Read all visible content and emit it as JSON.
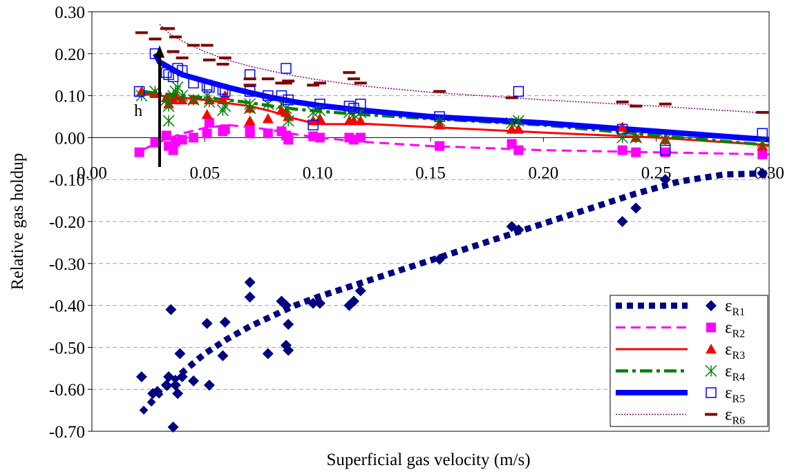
{
  "chart_data": {
    "type": "scatter",
    "xlabel": "Superficial gas velocity (m/s)",
    "ylabel": "Relative gas holdup",
    "xlim": [
      0,
      0.3
    ],
    "ylim": [
      -0.7,
      0.3
    ],
    "xticks": [
      0.0,
      0.05,
      0.1,
      0.15,
      0.2,
      0.25,
      0.3
    ],
    "xtick_labels": [
      "0.00",
      "0.05",
      "0.10",
      "0.15",
      "0.20",
      "0.25",
      "0.30"
    ],
    "yticks": [
      0.3,
      0.2,
      0.1,
      0.0,
      -0.1,
      -0.2,
      -0.3,
      -0.4,
      -0.5,
      -0.6,
      -0.7
    ],
    "ytick_labels": [
      "0.30",
      "0.20",
      "0.10",
      "0.00",
      "-0.10",
      "-0.20",
      "-0.30",
      "-0.40",
      "-0.50",
      "-0.60",
      "-0.70"
    ],
    "grid": "horizontal-dashed",
    "legend_position": "bottom-right",
    "annotation": {
      "text": "h",
      "arrow_x": 0.03,
      "arrow_from": -0.07,
      "arrow_to": 0.22,
      "text_x": 0.023,
      "text_y": 0.065
    },
    "series": [
      {
        "name": "ε",
        "sub": "R1",
        "marker": "diamond",
        "marker_color": "#000080",
        "line_style": "dotted-thick",
        "line_color": "#000080",
        "points": [
          [
            0.022,
            -0.57
          ],
          [
            0.027,
            -0.61
          ],
          [
            0.029,
            -0.605
          ],
          [
            0.033,
            -0.59
          ],
          [
            0.034,
            -0.57
          ],
          [
            0.035,
            -0.41
          ],
          [
            0.036,
            -0.69
          ],
          [
            0.037,
            -0.59
          ],
          [
            0.038,
            -0.61
          ],
          [
            0.039,
            -0.515
          ],
          [
            0.04,
            -0.57
          ],
          [
            0.045,
            -0.58
          ],
          [
            0.051,
            -0.443
          ],
          [
            0.052,
            -0.59
          ],
          [
            0.058,
            -0.52
          ],
          [
            0.059,
            -0.44
          ],
          [
            0.07,
            -0.345
          ],
          [
            0.07,
            -0.38
          ],
          [
            0.078,
            -0.515
          ],
          [
            0.084,
            -0.39
          ],
          [
            0.086,
            -0.495
          ],
          [
            0.086,
            -0.4
          ],
          [
            0.087,
            -0.445
          ],
          [
            0.087,
            -0.507
          ],
          [
            0.098,
            -0.395
          ],
          [
            0.101,
            -0.395
          ],
          [
            0.114,
            -0.4
          ],
          [
            0.116,
            -0.39
          ],
          [
            0.119,
            -0.365
          ],
          [
            0.154,
            -0.29
          ],
          [
            0.186,
            -0.212
          ],
          [
            0.189,
            -0.22
          ],
          [
            0.235,
            -0.2
          ],
          [
            0.241,
            -0.168
          ],
          [
            0.254,
            -0.1
          ],
          [
            0.297,
            -0.085
          ]
        ],
        "fit": [
          [
            0.022,
            -0.655
          ],
          [
            0.03,
            -0.61
          ],
          [
            0.04,
            -0.56
          ],
          [
            0.05,
            -0.515
          ],
          [
            0.06,
            -0.48
          ],
          [
            0.07,
            -0.45
          ],
          [
            0.08,
            -0.425
          ],
          [
            0.09,
            -0.4
          ],
          [
            0.1,
            -0.38
          ],
          [
            0.12,
            -0.345
          ],
          [
            0.14,
            -0.31
          ],
          [
            0.16,
            -0.275
          ],
          [
            0.18,
            -0.24
          ],
          [
            0.2,
            -0.205
          ],
          [
            0.22,
            -0.17
          ],
          [
            0.24,
            -0.135
          ],
          [
            0.26,
            -0.105
          ],
          [
            0.28,
            -0.088
          ],
          [
            0.3,
            -0.085
          ]
        ]
      },
      {
        "name": "ε",
        "sub": "R2",
        "marker": "square-filled",
        "marker_color": "#ff00ff",
        "line_style": "dashed",
        "line_color": "#ff00ff",
        "points": [
          [
            0.021,
            -0.035
          ],
          [
            0.028,
            -0.012
          ],
          [
            0.033,
            0.005
          ],
          [
            0.034,
            -0.02
          ],
          [
            0.036,
            -0.03
          ],
          [
            0.037,
            -0.01
          ],
          [
            0.04,
            -0.005
          ],
          [
            0.045,
            0.0
          ],
          [
            0.051,
            0.01
          ],
          [
            0.052,
            0.035
          ],
          [
            0.058,
            0.015
          ],
          [
            0.059,
            0.02
          ],
          [
            0.07,
            0.02
          ],
          [
            0.07,
            0.01
          ],
          [
            0.078,
            0.01
          ],
          [
            0.084,
            0.015
          ],
          [
            0.086,
            0.005
          ],
          [
            0.087,
            -0.005
          ],
          [
            0.098,
            0.003
          ],
          [
            0.101,
            0.0
          ],
          [
            0.114,
            0.0
          ],
          [
            0.116,
            -0.005
          ],
          [
            0.119,
            0.0
          ],
          [
            0.154,
            -0.02
          ],
          [
            0.186,
            -0.015
          ],
          [
            0.189,
            -0.03
          ],
          [
            0.235,
            -0.03
          ],
          [
            0.241,
            -0.035
          ],
          [
            0.254,
            -0.035
          ],
          [
            0.297,
            -0.04
          ]
        ],
        "fit": [
          [
            0.022,
            -0.03
          ],
          [
            0.03,
            -0.01
          ],
          [
            0.04,
            0.01
          ],
          [
            0.05,
            0.023
          ],
          [
            0.06,
            0.03
          ],
          [
            0.07,
            0.025
          ],
          [
            0.08,
            0.018
          ],
          [
            0.09,
            0.008
          ],
          [
            0.1,
            0.0
          ],
          [
            0.12,
            -0.01
          ],
          [
            0.15,
            -0.02
          ],
          [
            0.2,
            -0.03
          ],
          [
            0.25,
            -0.035
          ],
          [
            0.3,
            -0.04
          ]
        ]
      },
      {
        "name": "ε",
        "sub": "R3",
        "marker": "triangle",
        "marker_color": "#ff0000",
        "line_style": "solid",
        "line_color": "#ff0000",
        "points": [
          [
            0.022,
            0.11
          ],
          [
            0.028,
            0.105
          ],
          [
            0.033,
            0.095
          ],
          [
            0.034,
            0.08
          ],
          [
            0.036,
            0.09
          ],
          [
            0.037,
            0.1
          ],
          [
            0.04,
            0.09
          ],
          [
            0.045,
            0.09
          ],
          [
            0.051,
            0.055
          ],
          [
            0.052,
            0.09
          ],
          [
            0.058,
            0.09
          ],
          [
            0.059,
            0.1
          ],
          [
            0.07,
            0.04
          ],
          [
            0.07,
            0.07
          ],
          [
            0.078,
            0.045
          ],
          [
            0.084,
            0.065
          ],
          [
            0.086,
            0.06
          ],
          [
            0.087,
            0.05
          ],
          [
            0.098,
            0.04
          ],
          [
            0.101,
            0.045
          ],
          [
            0.114,
            0.04
          ],
          [
            0.116,
            0.04
          ],
          [
            0.119,
            0.04
          ],
          [
            0.154,
            0.03
          ],
          [
            0.186,
            0.02
          ],
          [
            0.189,
            0.02
          ],
          [
            0.235,
            0.025
          ],
          [
            0.241,
            0.0
          ],
          [
            0.254,
            -0.005
          ],
          [
            0.297,
            -0.02
          ]
        ],
        "fit": [
          [
            0.022,
            0.105
          ],
          [
            0.03,
            0.1
          ],
          [
            0.04,
            0.095
          ],
          [
            0.05,
            0.09
          ],
          [
            0.06,
            0.082
          ],
          [
            0.07,
            0.075
          ],
          [
            0.08,
            0.062
          ],
          [
            0.09,
            0.045
          ],
          [
            0.1,
            0.032
          ],
          [
            0.11,
            0.032
          ],
          [
            0.12,
            0.033
          ],
          [
            0.15,
            0.025
          ],
          [
            0.2,
            0.012
          ],
          [
            0.25,
            0.0
          ],
          [
            0.3,
            -0.018
          ]
        ]
      },
      {
        "name": "ε",
        "sub": "R4",
        "marker": "asterisk",
        "marker_color": "#008000",
        "line_style": "dashdot",
        "line_color": "#008000",
        "points": [
          [
            0.022,
            0.1
          ],
          [
            0.028,
            0.11
          ],
          [
            0.033,
            0.09
          ],
          [
            0.034,
            0.075
          ],
          [
            0.036,
            0.1
          ],
          [
            0.037,
            0.11
          ],
          [
            0.038,
            0.12
          ],
          [
            0.04,
            0.1
          ],
          [
            0.045,
            0.09
          ],
          [
            0.051,
            0.1
          ],
          [
            0.052,
            0.085
          ],
          [
            0.058,
            0.065
          ],
          [
            0.059,
            0.075
          ],
          [
            0.07,
            0.08
          ],
          [
            0.07,
            0.07
          ],
          [
            0.078,
            0.08
          ],
          [
            0.084,
            0.08
          ],
          [
            0.086,
            0.07
          ],
          [
            0.087,
            0.04
          ],
          [
            0.098,
            0.06
          ],
          [
            0.101,
            0.065
          ],
          [
            0.114,
            0.06
          ],
          [
            0.116,
            0.055
          ],
          [
            0.119,
            0.06
          ],
          [
            0.154,
            0.04
          ],
          [
            0.186,
            0.035
          ],
          [
            0.189,
            0.04
          ],
          [
            0.235,
            0.0
          ],
          [
            0.241,
            0.0
          ],
          [
            0.254,
            -0.005
          ],
          [
            0.297,
            -0.01
          ],
          [
            0.034,
            0.04
          ]
        ],
        "fit": [
          [
            0.022,
            0.11
          ],
          [
            0.03,
            0.105
          ],
          [
            0.04,
            0.1
          ],
          [
            0.05,
            0.095
          ],
          [
            0.06,
            0.09
          ],
          [
            0.07,
            0.083
          ],
          [
            0.08,
            0.075
          ],
          [
            0.09,
            0.068
          ],
          [
            0.1,
            0.063
          ],
          [
            0.12,
            0.055
          ],
          [
            0.15,
            0.045
          ],
          [
            0.2,
            0.03
          ],
          [
            0.25,
            0.005
          ],
          [
            0.3,
            -0.018
          ]
        ]
      },
      {
        "name": "ε",
        "sub": "R5",
        "marker": "square-open",
        "marker_color": "#0000ff",
        "line_style": "solid-thick",
        "line_color": "#0000ff",
        "points": [
          [
            0.021,
            0.11
          ],
          [
            0.028,
            0.2
          ],
          [
            0.033,
            0.155
          ],
          [
            0.034,
            0.15
          ],
          [
            0.036,
            0.145
          ],
          [
            0.038,
            0.165
          ],
          [
            0.04,
            0.16
          ],
          [
            0.045,
            0.13
          ],
          [
            0.051,
            0.125
          ],
          [
            0.052,
            0.12
          ],
          [
            0.058,
            0.115
          ],
          [
            0.059,
            0.11
          ],
          [
            0.07,
            0.15
          ],
          [
            0.07,
            0.11
          ],
          [
            0.078,
            0.1
          ],
          [
            0.084,
            0.1
          ],
          [
            0.086,
            0.165
          ],
          [
            0.087,
            0.09
          ],
          [
            0.098,
            0.03
          ],
          [
            0.101,
            0.08
          ],
          [
            0.114,
            0.075
          ],
          [
            0.116,
            0.07
          ],
          [
            0.119,
            0.08
          ],
          [
            0.154,
            0.05
          ],
          [
            0.189,
            0.11
          ],
          [
            0.235,
            0.02
          ],
          [
            0.254,
            -0.03
          ],
          [
            0.297,
            0.01
          ]
        ],
        "fit": [
          [
            0.028,
            0.2
          ],
          [
            0.03,
            0.18
          ],
          [
            0.035,
            0.165
          ],
          [
            0.04,
            0.15
          ],
          [
            0.05,
            0.135
          ],
          [
            0.06,
            0.12
          ],
          [
            0.07,
            0.107
          ],
          [
            0.08,
            0.095
          ],
          [
            0.09,
            0.085
          ],
          [
            0.1,
            0.077
          ],
          [
            0.12,
            0.065
          ],
          [
            0.15,
            0.05
          ],
          [
            0.2,
            0.035
          ],
          [
            0.25,
            0.015
          ],
          [
            0.3,
            -0.005
          ]
        ]
      },
      {
        "name": "ε",
        "sub": "R6",
        "marker": "dash",
        "marker_color": "#800000",
        "line_style": "dotted-thin",
        "line_color": "#800080",
        "points": [
          [
            0.022,
            0.25
          ],
          [
            0.028,
            0.235
          ],
          [
            0.033,
            0.26
          ],
          [
            0.034,
            0.26
          ],
          [
            0.036,
            0.205
          ],
          [
            0.037,
            0.24
          ],
          [
            0.04,
            0.19
          ],
          [
            0.045,
            0.22
          ],
          [
            0.051,
            0.22
          ],
          [
            0.052,
            0.185
          ],
          [
            0.058,
            0.175
          ],
          [
            0.059,
            0.19
          ],
          [
            0.07,
            0.14
          ],
          [
            0.07,
            0.125
          ],
          [
            0.078,
            0.14
          ],
          [
            0.084,
            0.13
          ],
          [
            0.086,
            0.13
          ],
          [
            0.087,
            0.135
          ],
          [
            0.098,
            0.125
          ],
          [
            0.101,
            0.13
          ],
          [
            0.114,
            0.155
          ],
          [
            0.116,
            0.14
          ],
          [
            0.119,
            0.13
          ],
          [
            0.154,
            0.11
          ],
          [
            0.186,
            0.095
          ],
          [
            0.235,
            0.085
          ],
          [
            0.241,
            0.075
          ],
          [
            0.254,
            0.08
          ],
          [
            0.297,
            0.06
          ]
        ],
        "fit": [
          [
            0.03,
            0.27
          ],
          [
            0.035,
            0.245
          ],
          [
            0.04,
            0.23
          ],
          [
            0.05,
            0.205
          ],
          [
            0.06,
            0.185
          ],
          [
            0.07,
            0.17
          ],
          [
            0.08,
            0.158
          ],
          [
            0.09,
            0.147
          ],
          [
            0.1,
            0.138
          ],
          [
            0.12,
            0.123
          ],
          [
            0.15,
            0.108
          ],
          [
            0.2,
            0.09
          ],
          [
            0.25,
            0.075
          ],
          [
            0.3,
            0.058
          ]
        ]
      }
    ]
  }
}
